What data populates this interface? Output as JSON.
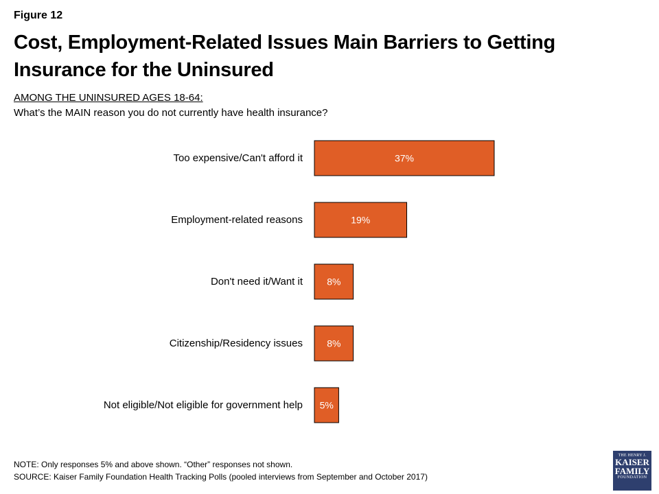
{
  "figure_label": "Figure 12",
  "title": "Cost, Employment-Related Issues Main Barriers to Getting Insurance for the Uninsured",
  "subtitle_line1": "AMONG THE UNINSURED AGES 18-64:",
  "subtitle_line2": "What’s the MAIN reason you do not currently have health insurance?",
  "chart_data": {
    "type": "bar",
    "orientation": "horizontal",
    "categories": [
      "Too expensive/Can't afford it",
      "Employment-related reasons",
      "Don't need it/Want it",
      "Citizenship/Residency issues",
      "Not eligible/Not eligible for government help"
    ],
    "values": [
      37,
      19,
      8,
      8,
      5
    ],
    "data_labels": [
      "37%",
      "19%",
      "8%",
      "8%",
      "5%"
    ],
    "unit": "%",
    "xlim": [
      0,
      100
    ],
    "bar_color": "#E05E26",
    "grid": false,
    "legend": "none"
  },
  "note": "NOTE: Only responses 5% and above shown. “Other” responses not shown.",
  "source": "SOURCE: Kaiser Family Foundation Health Tracking Polls (pooled interviews from September and October 2017)",
  "logo": {
    "line1": "THE HENRY J.",
    "line2": "KAISER",
    "line3": "FAMILY",
    "line4": "FOUNDATION",
    "color": "#2e3f6e"
  }
}
